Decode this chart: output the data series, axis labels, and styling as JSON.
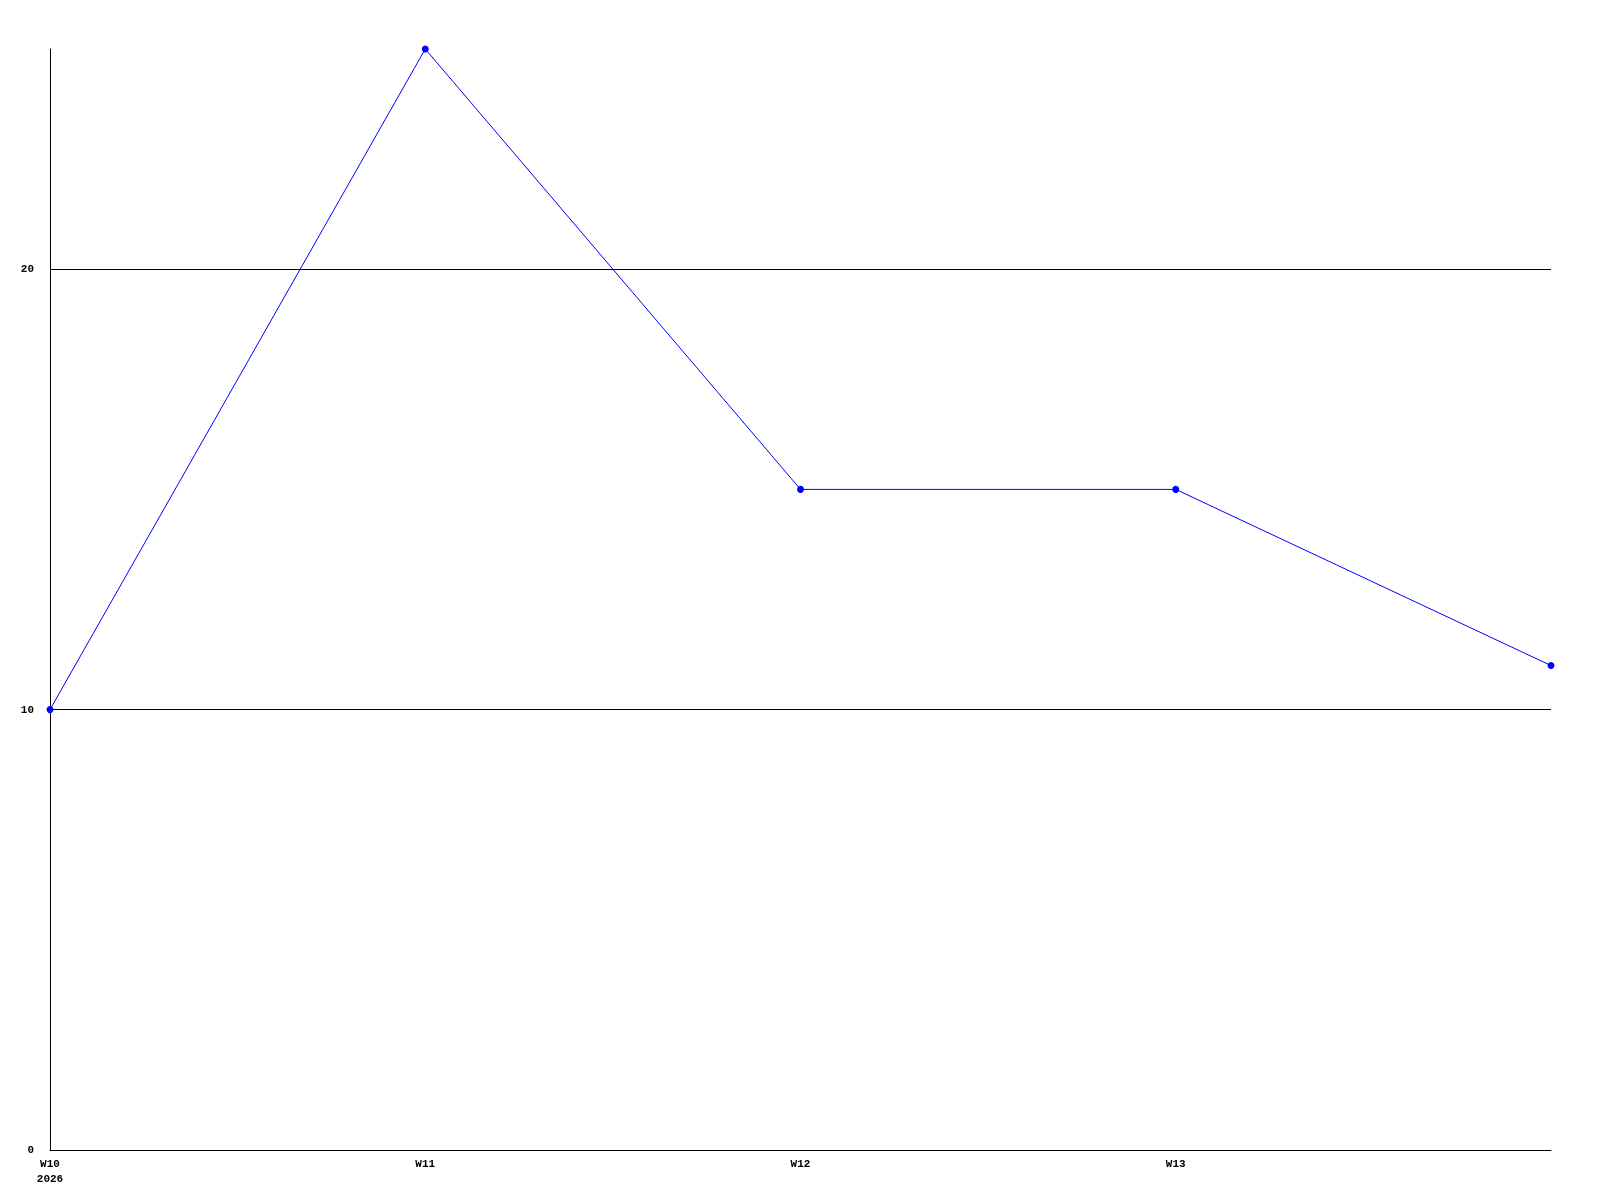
{
  "chart_data": {
    "type": "line",
    "categories": [
      "W10\n2026",
      "W11",
      "W12",
      "W13",
      null
    ],
    "series": [
      {
        "color": "#0000ff",
        "values": [
          10,
          25,
          15,
          15,
          11
        ]
      }
    ],
    "ylim": [
      0,
      25
    ],
    "yticks": [
      0,
      10,
      20
    ],
    "grid": "y",
    "marker": "circle",
    "line_style": "solid"
  }
}
